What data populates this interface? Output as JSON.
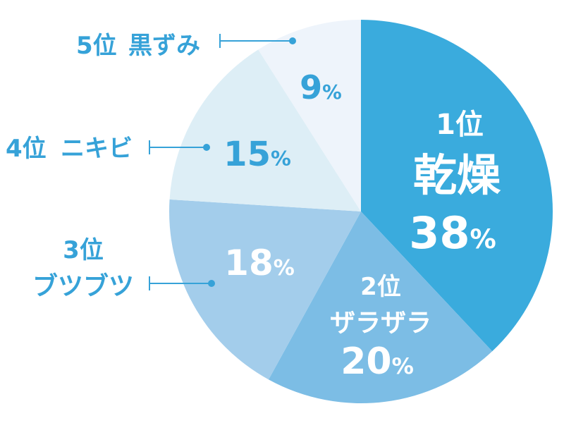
{
  "chart_data": {
    "type": "pie",
    "slices": [
      {
        "rank": "1位",
        "label": "乾燥",
        "value": 38,
        "value_text": "38",
        "percent_sign": "%",
        "color": "#3aabdd"
      },
      {
        "rank": "2位",
        "label": "ザラザラ",
        "value": 20,
        "value_text": "20",
        "percent_sign": "%",
        "color": "#7cbde5"
      },
      {
        "rank": "3位",
        "label": "ブツブツ",
        "value": 18,
        "value_text": "18",
        "percent_sign": "%",
        "color": "#a3cdeb"
      },
      {
        "rank": "4位",
        "label": "ニキビ",
        "value": 15,
        "value_text": "15",
        "percent_sign": "%",
        "color": "#ddeef6"
      },
      {
        "rank": "5位",
        "label": "黒ずみ",
        "value": 9,
        "value_text": "9",
        "percent_sign": "%",
        "color": "#eef4fb"
      }
    ],
    "label_color": "#36a2d8",
    "inner_text_color": "#ffffff",
    "outer_value_color": "#36a2d8"
  }
}
